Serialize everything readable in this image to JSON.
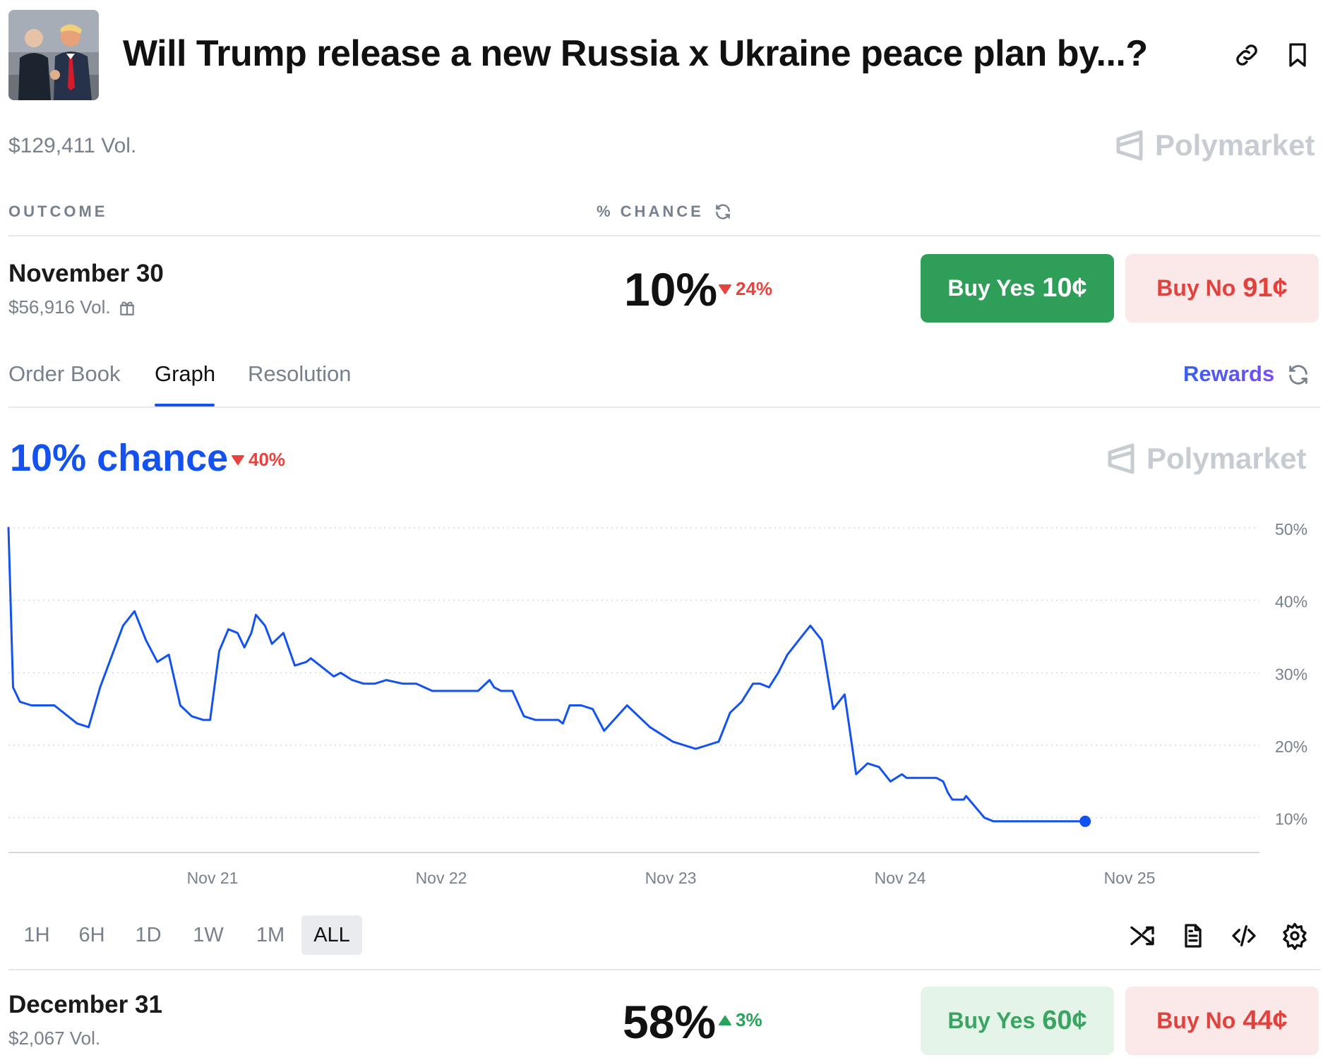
{
  "header": {
    "title": "Will Trump release a new Russia x Ukraine peace plan by...?",
    "volume": "$129,411 Vol.",
    "brand": "Polymarket",
    "icons": [
      "link-icon",
      "bookmark-icon"
    ]
  },
  "columns": {
    "outcome": "OUTCOME",
    "chance": "% CHANCE"
  },
  "outcomes": [
    {
      "name": "November 30",
      "volume": "$56,916 Vol.",
      "chance": "10%",
      "delta": "24%",
      "delta_dir": "down",
      "buy_yes_label": "Buy Yes",
      "buy_yes_price": "10¢",
      "buy_no_label": "Buy No",
      "buy_no_price": "91¢"
    },
    {
      "name": "December 31",
      "volume": "$2,067 Vol.",
      "chance": "58%",
      "delta": "3%",
      "delta_dir": "up",
      "buy_yes_label": "Buy Yes",
      "buy_yes_price": "60¢",
      "buy_no_label": "Buy No",
      "buy_no_price": "44¢"
    }
  ],
  "tabs": {
    "items": [
      "Order Book",
      "Graph",
      "Resolution"
    ],
    "active": "Graph",
    "rewards": "Rewards"
  },
  "graph": {
    "chance_text": "10% chance",
    "delta": "40%",
    "delta_dir": "down",
    "brand": "Polymarket",
    "ranges": [
      "1H",
      "6H",
      "1D",
      "1W",
      "1M",
      "ALL"
    ],
    "active_range": "ALL",
    "tool_icons": [
      "shuffle-icon",
      "document-icon",
      "code-embed-icon",
      "settings-gear-icon"
    ]
  },
  "colors": {
    "accent": "#1452f0",
    "yes_green": "#2f9e58",
    "no_red": "#e0433e",
    "down_red": "#e8433f",
    "up_green": "#27a35a"
  },
  "chart_data": {
    "type": "line",
    "x_tick_labels": [
      "Nov 21",
      "Nov 22",
      "Nov 23",
      "Nov 24",
      "Nov 25"
    ],
    "y_tick_labels": [
      "50%",
      "40%",
      "30%",
      "20%",
      "10%"
    ],
    "ylim": [
      5,
      50
    ],
    "y_ticks": [
      50,
      40,
      30,
      20,
      10
    ],
    "grid": true,
    "series": [
      {
        "color": "#1452f0",
        "x_days": [
          0.0,
          0.02,
          0.05,
          0.1,
          0.2,
          0.3,
          0.35,
          0.4,
          0.5,
          0.55,
          0.6,
          0.65,
          0.7,
          0.75,
          0.8,
          0.85,
          0.88,
          0.92,
          0.96,
          1.0,
          1.03,
          1.06,
          1.08,
          1.12,
          1.15,
          1.2,
          1.25,
          1.3,
          1.32,
          1.36,
          1.4,
          1.42,
          1.45,
          1.5,
          1.55,
          1.6,
          1.65,
          1.72,
          1.78,
          1.85,
          1.9,
          1.95,
          2.0,
          2.05,
          2.1,
          2.12,
          2.15,
          2.2,
          2.25,
          2.3,
          2.35,
          2.4,
          2.42,
          2.45,
          2.5,
          2.55,
          2.6,
          2.7,
          2.8,
          2.9,
          3.0,
          3.05,
          3.1,
          3.15,
          3.2,
          3.25,
          3.28,
          3.32,
          3.36,
          3.4,
          3.45,
          3.5,
          3.55,
          3.6,
          3.65,
          3.7,
          3.75,
          3.8,
          3.85,
          3.9,
          3.92,
          3.95,
          4.0,
          4.05,
          4.08,
          4.1,
          4.12,
          4.15,
          4.17,
          4.18,
          4.22,
          4.26,
          4.3,
          4.35,
          4.4,
          4.45,
          4.5,
          4.55,
          4.6,
          4.65,
          4.68,
          4.7
        ],
        "y": [
          50.0,
          28.0,
          26.0,
          25.5,
          25.5,
          23.0,
          22.5,
          28.0,
          36.5,
          38.5,
          34.5,
          31.5,
          32.5,
          25.5,
          24.0,
          23.5,
          23.5,
          33.0,
          36.0,
          35.5,
          33.5,
          35.5,
          38.0,
          36.5,
          34.0,
          35.5,
          31.0,
          31.5,
          32.0,
          31.0,
          30.0,
          29.5,
          30.0,
          29.0,
          28.5,
          28.5,
          29.0,
          28.5,
          28.5,
          27.5,
          27.5,
          27.5,
          27.5,
          27.5,
          29.0,
          28.0,
          27.5,
          27.5,
          24.0,
          23.5,
          23.5,
          23.5,
          23.0,
          25.5,
          25.5,
          25.0,
          22.0,
          25.5,
          22.5,
          20.5,
          19.5,
          20.0,
          20.5,
          24.5,
          26.0,
          28.5,
          28.5,
          28.0,
          30.0,
          32.5,
          34.5,
          36.5,
          34.5,
          25.0,
          27.0,
          16.0,
          17.5,
          17.0,
          15.0,
          16.0,
          15.5,
          15.5,
          15.5,
          15.5,
          15.0,
          13.5,
          12.5,
          12.5,
          12.5,
          13.0,
          11.5,
          10.0,
          9.5,
          9.5,
          9.5,
          9.5,
          9.5,
          9.5,
          9.5,
          9.5,
          9.5,
          9.5
        ]
      }
    ]
  }
}
